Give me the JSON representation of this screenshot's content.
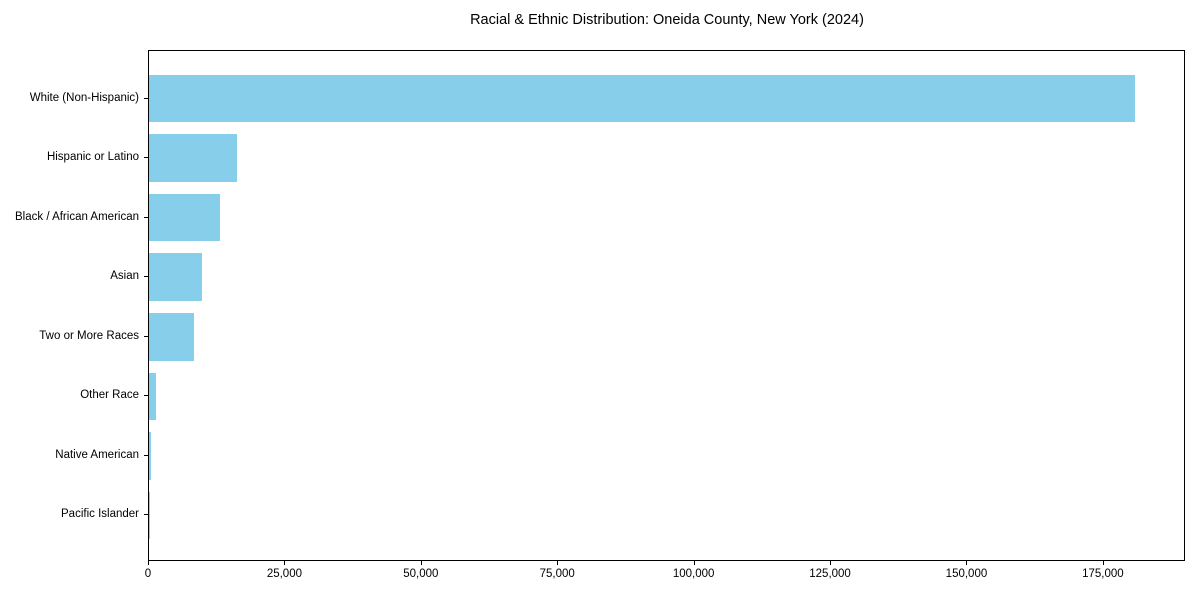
{
  "chart_data": {
    "type": "bar",
    "orientation": "horizontal",
    "title": "Racial & Ethnic Distribution: Oneida County, New York (2024)",
    "categories": [
      "White (Non-Hispanic)",
      "Hispanic or Latino",
      "Black / African American",
      "Asian",
      "Two or More Races",
      "Other Race",
      "Native American",
      "Pacific Islander"
    ],
    "values": [
      181000,
      16100,
      13100,
      9800,
      8250,
      1250,
      400,
      50
    ],
    "xlabel": "",
    "ylabel": "",
    "xlim": [
      0,
      190050
    ],
    "x_ticks": [
      0,
      25000,
      50000,
      75000,
      100000,
      125000,
      150000,
      175000
    ],
    "x_tick_labels": [
      "0",
      "25,000",
      "50,000",
      "75,000",
      "100,000",
      "125,000",
      "150,000",
      "175,000"
    ],
    "bar_color": "#87CEEB",
    "text_color": "#000000",
    "grid": false,
    "legend": null
  }
}
